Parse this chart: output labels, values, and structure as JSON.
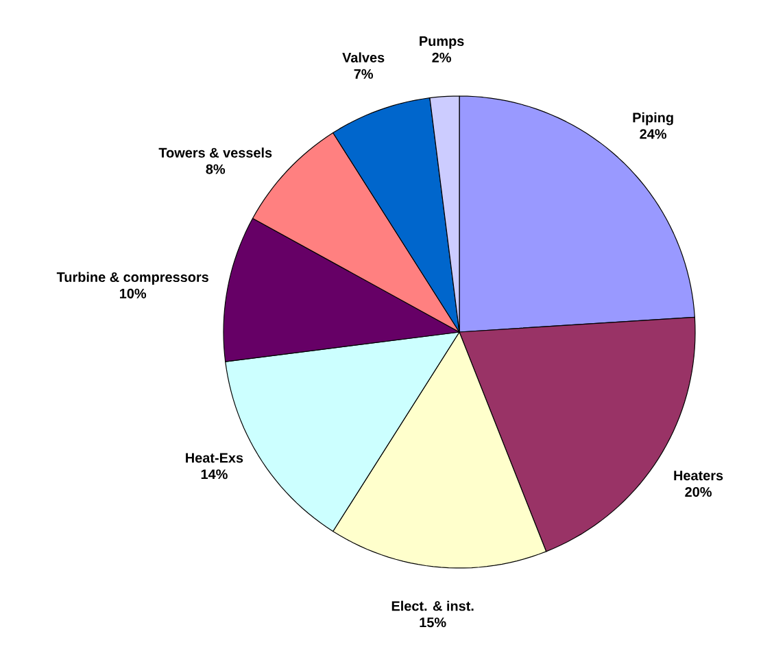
{
  "chart_data": {
    "type": "pie",
    "categories": [
      "Piping",
      "Heaters",
      "Elect. & inst.",
      "Heat-Exs",
      "Turbine & compressors",
      "Towers & vessels",
      "Valves",
      "Pumps"
    ],
    "values": [
      24,
      20,
      15,
      14,
      10,
      8,
      7,
      2
    ],
    "value_labels": [
      "24%",
      "20%",
      "15%",
      "14%",
      "10%",
      "8%",
      "7%",
      "2%"
    ],
    "colors": [
      "#9999ff",
      "#993366",
      "#ffffcc",
      "#ccffff",
      "#660066",
      "#ff8080",
      "#0066cc",
      "#ccccff"
    ]
  }
}
